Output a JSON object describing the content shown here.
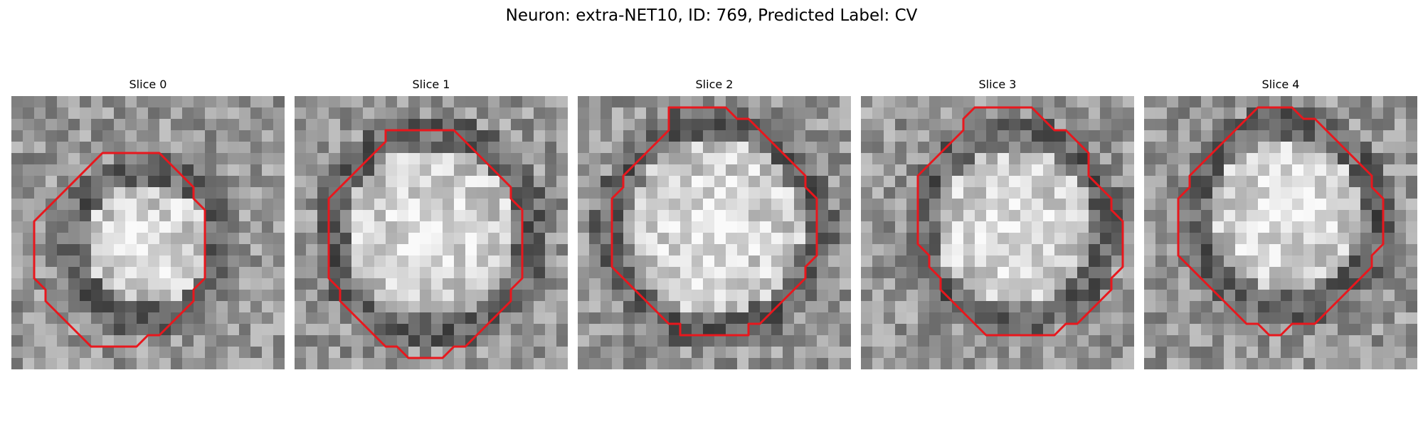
{
  "figure": {
    "title": "Neuron: extra-NET10, ID: 769, Predicted Label: CV"
  },
  "panels": [
    {
      "title": "Slice 0",
      "seed": 11,
      "ring": {
        "cx": 12,
        "cy": 13,
        "r_in": 5.2,
        "r_out": 8.0
      },
      "contour": [
        [
          10,
          5
        ],
        [
          13,
          5
        ],
        [
          14,
          6
        ],
        [
          15,
          7
        ],
        [
          16,
          8
        ],
        [
          16,
          9
        ],
        [
          17,
          10
        ],
        [
          17,
          11
        ],
        [
          17,
          12
        ],
        [
          17,
          13
        ],
        [
          17,
          14
        ],
        [
          17,
          15
        ],
        [
          17,
          16
        ],
        [
          16,
          17
        ],
        [
          16,
          18
        ],
        [
          15,
          19
        ],
        [
          14,
          20
        ],
        [
          13,
          21
        ],
        [
          12,
          21
        ],
        [
          11,
          22
        ],
        [
          10,
          22
        ],
        [
          9,
          22
        ],
        [
          8,
          22
        ],
        [
          7,
          22
        ],
        [
          6,
          21
        ],
        [
          5,
          20
        ],
        [
          4,
          19
        ],
        [
          3,
          18
        ],
        [
          3,
          17
        ],
        [
          2,
          16
        ],
        [
          2,
          15
        ],
        [
          2,
          14
        ],
        [
          2,
          13
        ],
        [
          2,
          12
        ],
        [
          2,
          11
        ],
        [
          3,
          10
        ],
        [
          4,
          9
        ],
        [
          5,
          8
        ],
        [
          6,
          7
        ],
        [
          7,
          6
        ],
        [
          8,
          5
        ],
        [
          9,
          5
        ]
      ],
      "outline_color": "#e8171d"
    },
    {
      "title": "Slice 1",
      "seed": 23,
      "ring": {
        "cx": 12,
        "cy": 12,
        "r_in": 7.4,
        "r_out": 10.5
      },
      "contour": [
        [
          8,
          3
        ],
        [
          14,
          3
        ],
        [
          15,
          4
        ],
        [
          16,
          5
        ],
        [
          17,
          6
        ],
        [
          18,
          7
        ],
        [
          19,
          8
        ],
        [
          19,
          9
        ],
        [
          20,
          10
        ],
        [
          20,
          11
        ],
        [
          20,
          12
        ],
        [
          20,
          13
        ],
        [
          20,
          14
        ],
        [
          20,
          15
        ],
        [
          20,
          16
        ],
        [
          19,
          17
        ],
        [
          19,
          18
        ],
        [
          18,
          19
        ],
        [
          17,
          20
        ],
        [
          16,
          21
        ],
        [
          15,
          22
        ],
        [
          14,
          22
        ],
        [
          13,
          23
        ],
        [
          10,
          23
        ],
        [
          9,
          22
        ],
        [
          8,
          22
        ],
        [
          7,
          21
        ],
        [
          6,
          20
        ],
        [
          5,
          19
        ],
        [
          4,
          18
        ],
        [
          4,
          17
        ],
        [
          3,
          16
        ],
        [
          3,
          15
        ],
        [
          3,
          14
        ],
        [
          3,
          13
        ],
        [
          3,
          12
        ],
        [
          3,
          11
        ],
        [
          3,
          10
        ],
        [
          3,
          9
        ],
        [
          4,
          8
        ],
        [
          5,
          7
        ],
        [
          6,
          6
        ],
        [
          7,
          5
        ],
        [
          8,
          4
        ]
      ],
      "outline_color": "#e8171d"
    },
    {
      "title": "Slice 2",
      "seed": 37,
      "ring": {
        "cx": 12,
        "cy": 11.5,
        "r_in": 7.6,
        "r_out": 10.6
      },
      "contour": [
        [
          8,
          1
        ],
        [
          13,
          1
        ],
        [
          14,
          2
        ],
        [
          15,
          2
        ],
        [
          16,
          3
        ],
        [
          17,
          4
        ],
        [
          18,
          5
        ],
        [
          19,
          6
        ],
        [
          20,
          7
        ],
        [
          20,
          8
        ],
        [
          21,
          9
        ],
        [
          21,
          10
        ],
        [
          21,
          11
        ],
        [
          21,
          12
        ],
        [
          21,
          13
        ],
        [
          21,
          14
        ],
        [
          20,
          15
        ],
        [
          20,
          16
        ],
        [
          19,
          17
        ],
        [
          18,
          18
        ],
        [
          17,
          19
        ],
        [
          16,
          20
        ],
        [
          15,
          20
        ],
        [
          15,
          21
        ],
        [
          9,
          21
        ],
        [
          9,
          20
        ],
        [
          8,
          20
        ],
        [
          7,
          19
        ],
        [
          6,
          18
        ],
        [
          5,
          17
        ],
        [
          4,
          16
        ],
        [
          3,
          15
        ],
        [
          3,
          14
        ],
        [
          3,
          13
        ],
        [
          3,
          12
        ],
        [
          3,
          11
        ],
        [
          3,
          10
        ],
        [
          3,
          9
        ],
        [
          4,
          8
        ],
        [
          4,
          7
        ],
        [
          5,
          6
        ],
        [
          6,
          5
        ],
        [
          7,
          4
        ],
        [
          8,
          3
        ]
      ],
      "outline_color": "#e8171d"
    },
    {
      "title": "Slice 3",
      "seed": 51,
      "ring": {
        "cx": 13.5,
        "cy": 11.5,
        "r_in": 6.8,
        "r_out": 9.8
      },
      "contour": [
        [
          10,
          1
        ],
        [
          15,
          1
        ],
        [
          16,
          2
        ],
        [
          17,
          3
        ],
        [
          18,
          3
        ],
        [
          19,
          4
        ],
        [
          20,
          5
        ],
        [
          20,
          7
        ],
        [
          21,
          8
        ],
        [
          22,
          9
        ],
        [
          22,
          10
        ],
        [
          23,
          11
        ],
        [
          23,
          15
        ],
        [
          22,
          16
        ],
        [
          22,
          17
        ],
        [
          21,
          18
        ],
        [
          20,
          19
        ],
        [
          19,
          20
        ],
        [
          18,
          20
        ],
        [
          17,
          21
        ],
        [
          11,
          21
        ],
        [
          10,
          20
        ],
        [
          9,
          19
        ],
        [
          8,
          18
        ],
        [
          7,
          17
        ],
        [
          7,
          16
        ],
        [
          6,
          15
        ],
        [
          6,
          14
        ],
        [
          5,
          13
        ],
        [
          5,
          11
        ],
        [
          5,
          7
        ],
        [
          6,
          6
        ],
        [
          7,
          5
        ],
        [
          8,
          4
        ],
        [
          9,
          3
        ],
        [
          9,
          2
        ]
      ],
      "outline_color": "#e8171d"
    },
    {
      "title": "Slice 4",
      "seed": 67,
      "ring": {
        "cx": 12.5,
        "cy": 10.5,
        "r_in": 6.6,
        "r_out": 9.6
      },
      "contour": [
        [
          10,
          1
        ],
        [
          13,
          1
        ],
        [
          14,
          2
        ],
        [
          15,
          2
        ],
        [
          16,
          3
        ],
        [
          17,
          4
        ],
        [
          18,
          5
        ],
        [
          19,
          6
        ],
        [
          20,
          7
        ],
        [
          20,
          8
        ],
        [
          21,
          9
        ],
        [
          21,
          10
        ],
        [
          21,
          11
        ],
        [
          21,
          12
        ],
        [
          21,
          13
        ],
        [
          20,
          14
        ],
        [
          20,
          15
        ],
        [
          19,
          16
        ],
        [
          18,
          17
        ],
        [
          17,
          18
        ],
        [
          16,
          19
        ],
        [
          15,
          20
        ],
        [
          13,
          20
        ],
        [
          12,
          21
        ],
        [
          11,
          21
        ],
        [
          10,
          20
        ],
        [
          9,
          20
        ],
        [
          8,
          19
        ],
        [
          7,
          18
        ],
        [
          6,
          17
        ],
        [
          5,
          16
        ],
        [
          4,
          15
        ],
        [
          3,
          14
        ],
        [
          3,
          13
        ],
        [
          3,
          12
        ],
        [
          3,
          11
        ],
        [
          3,
          10
        ],
        [
          3,
          9
        ],
        [
          4,
          8
        ],
        [
          4,
          7
        ],
        [
          5,
          6
        ],
        [
          6,
          5
        ],
        [
          7,
          4
        ],
        [
          8,
          3
        ],
        [
          9,
          2
        ]
      ],
      "outline_color": "#e8171d"
    }
  ]
}
